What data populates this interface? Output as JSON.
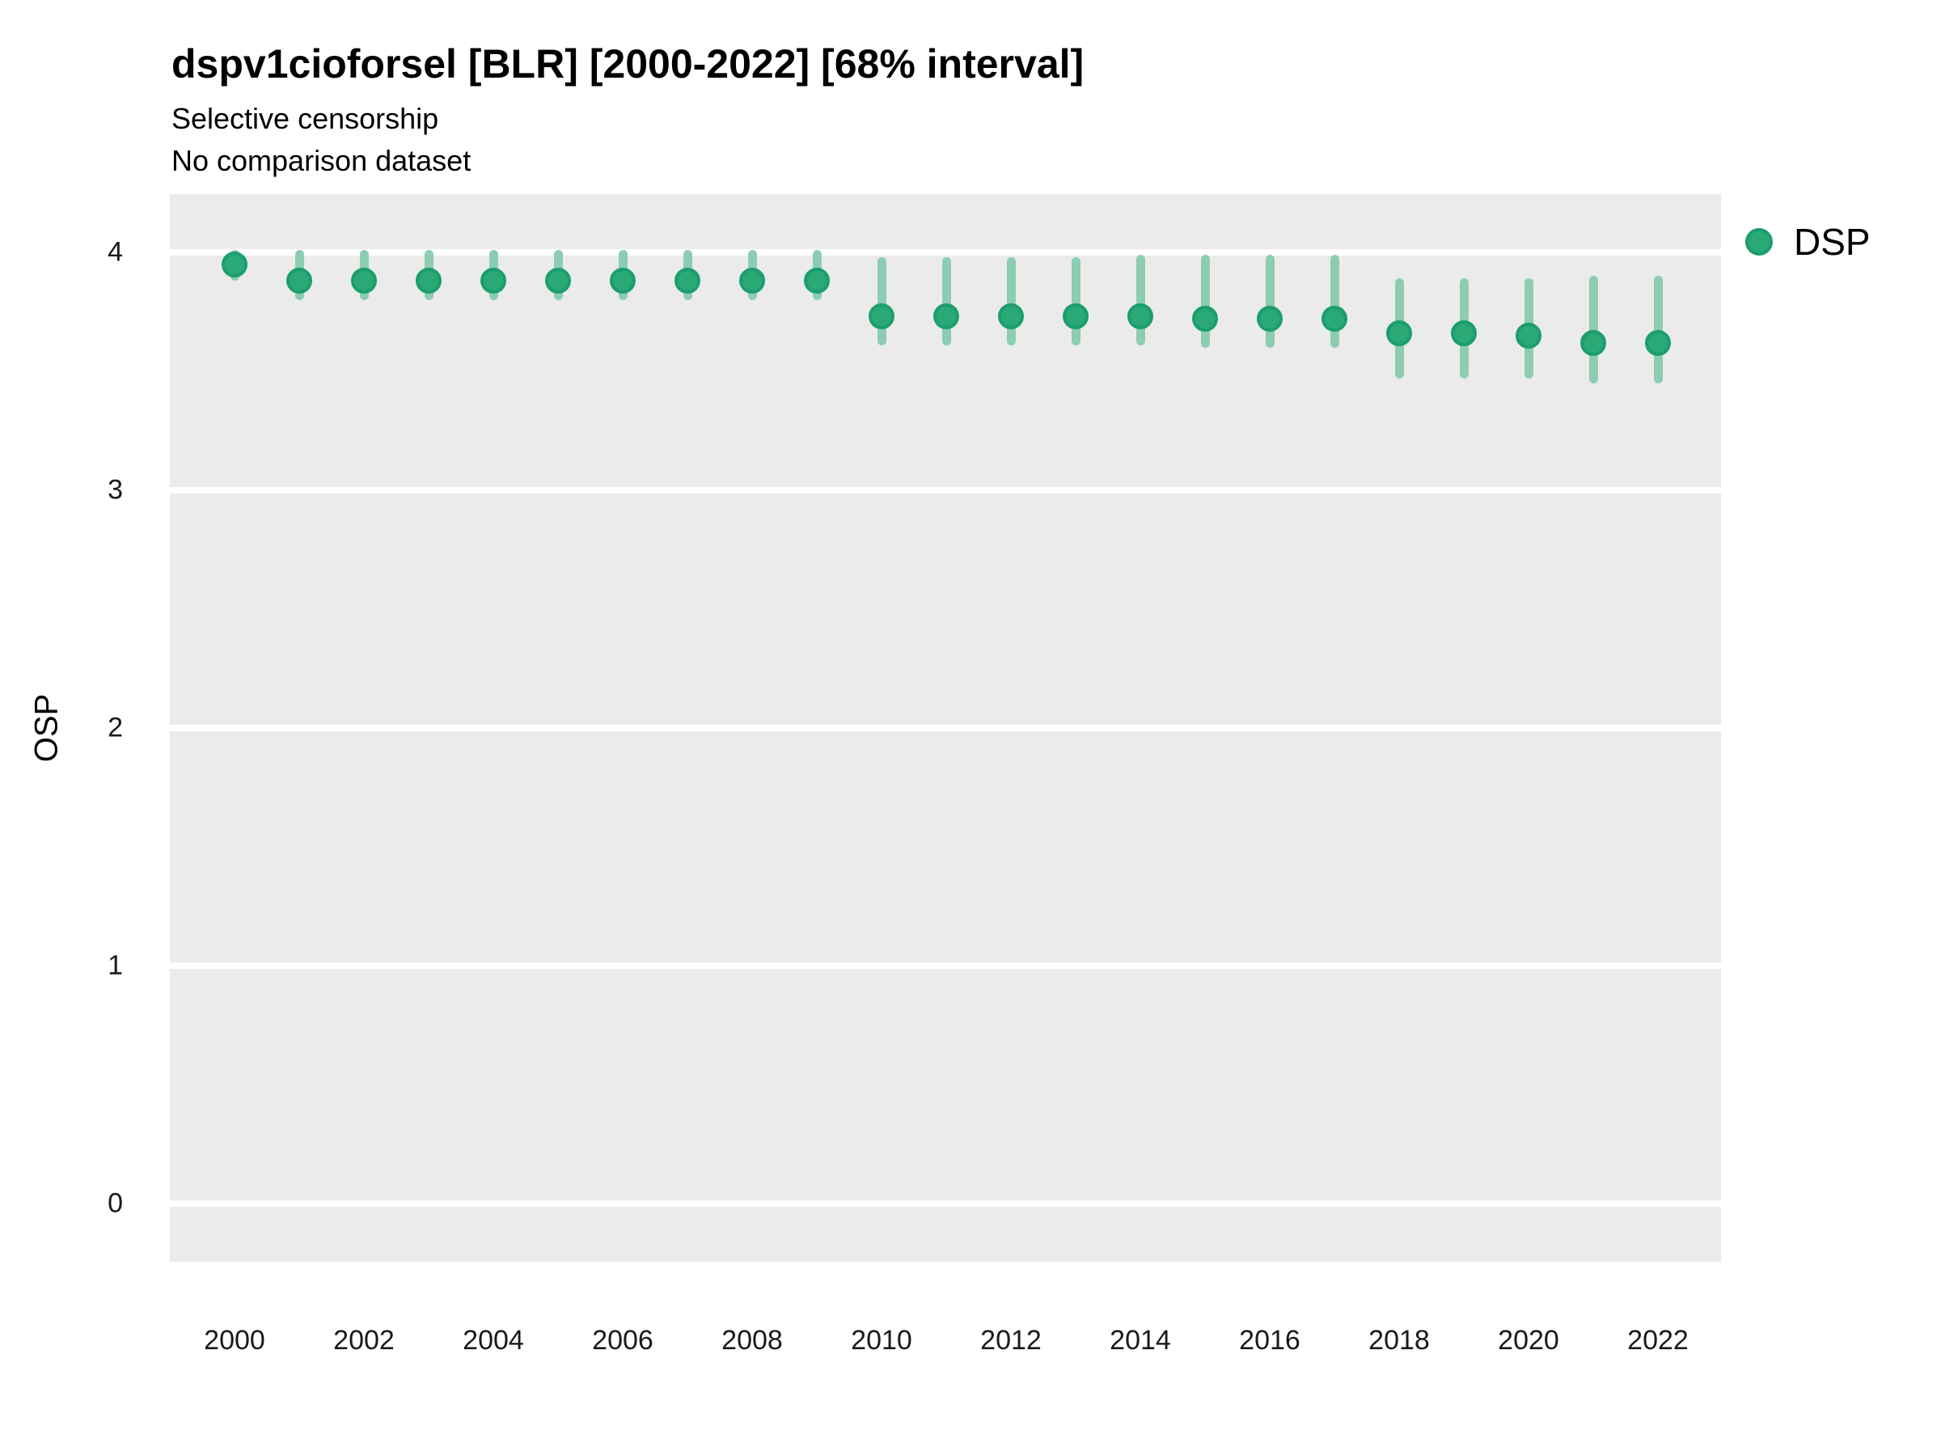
{
  "header": {
    "title": "dspv1cioforsel [BLR] [2000-2022] [68% interval]",
    "subtitle1": "Selective censorship",
    "subtitle2": "No comparison dataset"
  },
  "legend": {
    "items": [
      {
        "label": "DSP",
        "color": "#2aa876"
      }
    ]
  },
  "colors": {
    "point_fill": "#2aa876",
    "point_ring": "#1b9e6e",
    "interval_bar": "#8CCDB2",
    "panel_background": "#EBEBEB",
    "gridline": "#ffffff",
    "tick_text": "#1a1a1a"
  },
  "chart_data": {
    "type": "scatter",
    "title": "dspv1cioforsel [BLR] [2000-2022] [68% interval]",
    "subtitle": [
      "Selective censorship",
      "No comparison dataset"
    ],
    "xlabel": "",
    "ylabel": "OSP",
    "interval": "68%",
    "grid": "horizontal-major-only",
    "legend_position": "right-top",
    "x_ticks": [
      2000,
      2002,
      2004,
      2006,
      2008,
      2010,
      2012,
      2014,
      2016,
      2018,
      2020,
      2022
    ],
    "y_ticks": [
      0,
      1,
      2,
      3,
      4
    ],
    "xlim": [
      1999.0,
      2022.975
    ],
    "ylim": [
      -0.245,
      4.245
    ],
    "series": [
      {
        "name": "DSP",
        "color": "#2aa876",
        "x": [
          2000,
          2001,
          2002,
          2003,
          2004,
          2005,
          2006,
          2007,
          2008,
          2009,
          2010,
          2011,
          2012,
          2013,
          2014,
          2015,
          2016,
          2017,
          2018,
          2019,
          2020,
          2021,
          2022
        ],
        "y": [
          3.95,
          3.88,
          3.88,
          3.88,
          3.88,
          3.88,
          3.88,
          3.88,
          3.88,
          3.88,
          3.73,
          3.73,
          3.73,
          3.73,
          3.73,
          3.72,
          3.72,
          3.72,
          3.66,
          3.66,
          3.65,
          3.62,
          3.62
        ],
        "y_low": [
          3.88,
          3.8,
          3.8,
          3.8,
          3.8,
          3.8,
          3.8,
          3.8,
          3.8,
          3.8,
          3.61,
          3.61,
          3.61,
          3.61,
          3.61,
          3.6,
          3.6,
          3.6,
          3.47,
          3.47,
          3.47,
          3.45,
          3.45
        ],
        "y_high": [
          4.01,
          4.01,
          4.01,
          4.01,
          4.01,
          4.01,
          4.01,
          4.01,
          4.01,
          4.01,
          3.98,
          3.98,
          3.98,
          3.98,
          3.99,
          3.99,
          3.99,
          3.99,
          3.89,
          3.89,
          3.89,
          3.9,
          3.9
        ]
      }
    ]
  }
}
